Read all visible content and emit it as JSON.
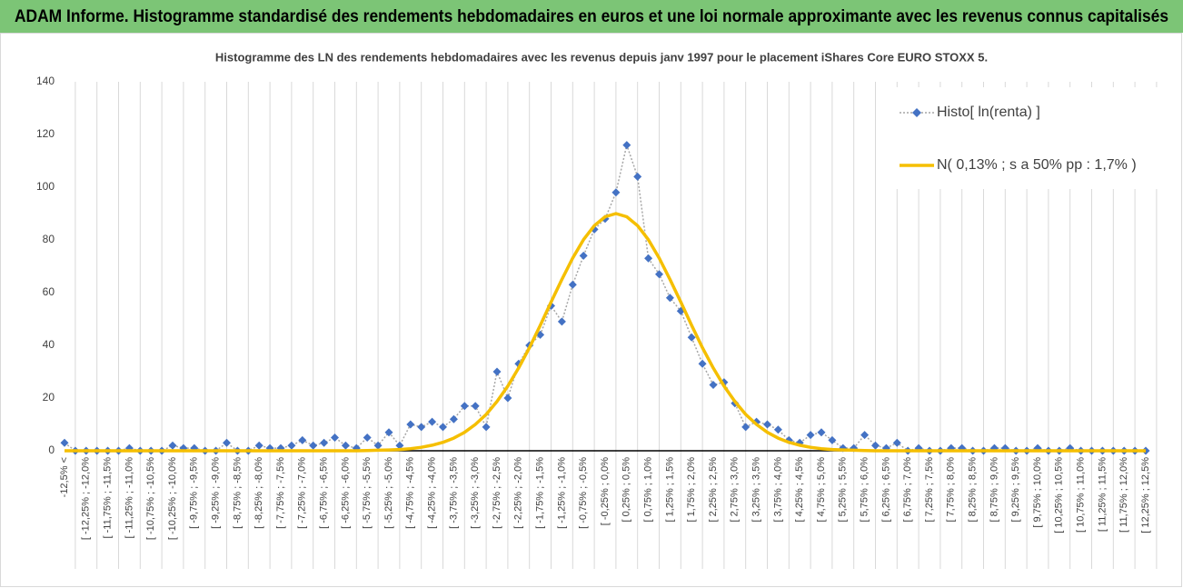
{
  "chart_data": {
    "type": "line",
    "banner": "ADAM Informe. Histogramme standardisé des rendements hebdomadaires en euros et une loi normale approximante avec les revenus connus capitalisés",
    "title": "Histogramme des LN des rendements hebdomadaires avec les revenus depuis janv 1997 pour le placement iShares Core EURO STOXX 5.",
    "categories": [
      "-12,5% <",
      null,
      "[ -12,25% ; -12,0%",
      null,
      "[ -11,75% ; -11,5%",
      null,
      "[ -11,25% ; -11,0%",
      null,
      "[ -10,75% ; -10,5%",
      null,
      "[ -10,25% ; -10,0%",
      null,
      "[ -9,75% ; -9,5%",
      null,
      "[ -9,25% ; -9,0%",
      null,
      "[ -8,75% ; -8,5%",
      null,
      "[ -8,25% ; -8,0%",
      null,
      "[ -7,75% ; -7,5%",
      null,
      "[ -7,25% ; -7,0%",
      null,
      "[ -6,75% ; -6,5%",
      null,
      "[ -6,25% ; -6,0%",
      null,
      "[ -5,75% ; -5,5%",
      null,
      "[ -5,25% ; -5,0%",
      null,
      "[ -4,75% ; -4,5%",
      null,
      "[ -4,25% ; -4,0%",
      null,
      "[ -3,75% ; -3,5%",
      null,
      "[ -3,25% ; -3,0%",
      null,
      "[ -2,75% ; -2,5%",
      null,
      "[ -2,25% ; -2,0%",
      null,
      "[ -1,75% ; -1,5%",
      null,
      "[ -1,25% ; -1,0%",
      null,
      "[ -0,75% ; -0,5%",
      null,
      "[ -0,25% ; 0,0%",
      null,
      "[ 0,25% ; 0,5%",
      null,
      "[ 0,75% ; 1,0%",
      null,
      "[ 1,25% ; 1,5%",
      null,
      "[ 1,75% ; 2,0%",
      null,
      "[ 2,25% ; 2,5%",
      null,
      "[ 2,75% ; 3,0%",
      null,
      "[ 3,25% ; 3,5%",
      null,
      "[ 3,75% ; 4,0%",
      null,
      "[ 4,25% ; 4,5%",
      null,
      "[ 4,75% ; 5,0%",
      null,
      "[ 5,25% ; 5,5%",
      null,
      "[ 5,75% ; 6,0%",
      null,
      "[ 6,25% ; 6,5%",
      null,
      "[ 6,75% ; 7,0%",
      null,
      "[ 7,25% ; 7,5%",
      null,
      "[ 7,75% ; 8,0%",
      null,
      "[ 8,25% ; 8,5%",
      null,
      "[ 8,75% ; 9,0%",
      null,
      "[ 9,25% ; 9,5%",
      null,
      "[ 9,75% ; 10,0%",
      null,
      "[ 10,25% ; 10,5%",
      null,
      "[ 10,75% ; 11,0%",
      null,
      "[ 11,25% ; 11,5%",
      null,
      "[ 11,75% ; 12,0%",
      null,
      "[ 12,25% ; 12,5%"
    ],
    "series": [
      {
        "name": "Histo[ ln(renta) ]",
        "color": "#4472c4",
        "line_color": "#a6a6a6",
        "values": [
          3,
          0,
          0,
          0,
          0,
          0,
          1,
          0,
          0,
          0,
          2,
          1,
          1,
          0,
          0,
          3,
          0,
          0,
          2,
          1,
          1,
          2,
          4,
          2,
          3,
          5,
          2,
          1,
          5,
          2,
          7,
          2,
          10,
          9,
          11,
          9,
          12,
          17,
          17,
          9,
          30,
          20,
          33,
          40,
          44,
          55,
          49,
          63,
          74,
          84,
          88,
          98,
          116,
          104,
          73,
          67,
          58,
          53,
          43,
          33,
          25,
          26,
          18,
          9,
          11,
          10,
          8,
          4,
          3,
          6,
          7,
          4,
          1,
          1,
          6,
          2,
          1,
          3,
          0,
          1,
          0,
          0,
          1,
          1,
          0,
          0,
          1,
          1,
          0,
          0,
          1,
          0,
          0,
          1,
          0,
          0,
          0,
          0,
          0,
          0,
          0
        ]
      },
      {
        "name": "N( 0,13% ; s a 50% pp : 1,7% )",
        "color": "#f5bf00",
        "values": [
          0,
          0,
          0,
          0,
          0,
          0,
          0,
          0,
          0,
          0,
          0,
          0,
          0,
          0,
          0,
          0,
          0,
          0,
          0,
          0,
          0,
          0,
          0,
          0,
          0,
          0,
          0,
          0,
          0.1,
          0.2,
          0.3,
          0.5,
          0.8,
          1.3,
          2.1,
          3.2,
          4.8,
          7.0,
          10.0,
          13.8,
          18.7,
          24.5,
          31.4,
          39.1,
          47.6,
          56.4,
          65.0,
          73.1,
          80.1,
          85.4,
          88.8,
          90,
          88.8,
          85.4,
          80.1,
          73.1,
          65.0,
          56.4,
          47.6,
          39.1,
          31.4,
          24.5,
          18.7,
          13.8,
          10.0,
          7.0,
          4.8,
          3.2,
          2.1,
          1.3,
          0.8,
          0.5,
          0.3,
          0.2,
          0.1,
          0,
          0,
          0,
          0,
          0,
          0,
          0,
          0,
          0,
          0,
          0,
          0,
          0,
          0,
          0,
          0,
          0,
          0,
          0,
          0,
          0,
          0,
          0,
          0,
          0,
          0
        ]
      }
    ],
    "ylim": [
      0,
      140
    ],
    "yticks": [
      0,
      20,
      40,
      60,
      80,
      100,
      120,
      140
    ],
    "grid": true,
    "legend": "upper right",
    "banner_color": "#7cc576"
  }
}
